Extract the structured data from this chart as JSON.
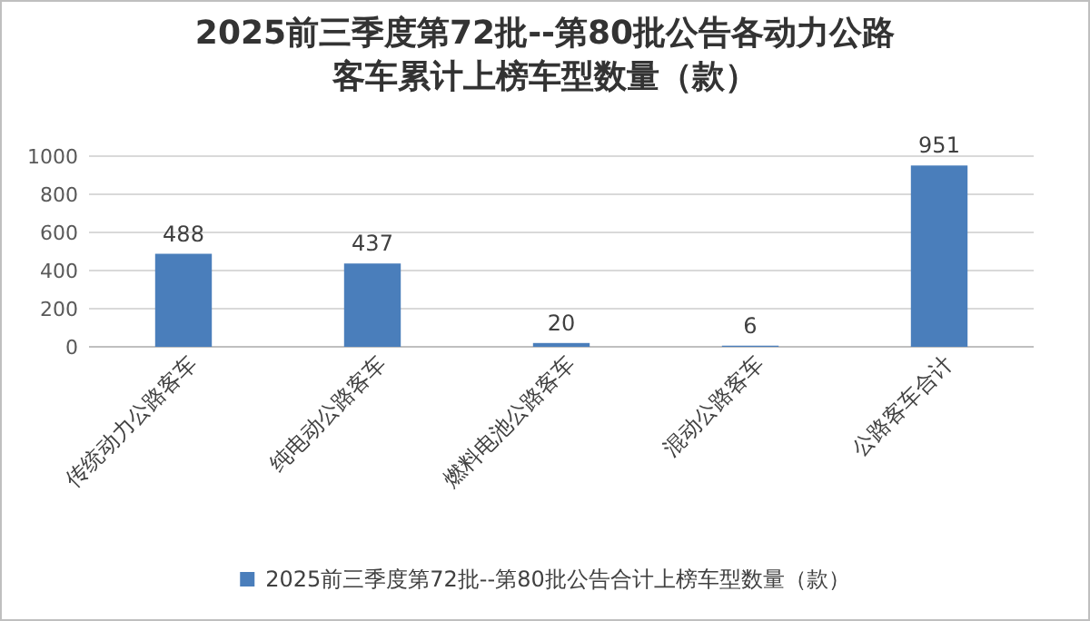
{
  "chart_data": {
    "type": "bar",
    "title": "2025前三季度第72批--第80批公告各动力公路客车累计上榜车型数量（款）",
    "categories": [
      "传统动力公路客车",
      "纯电动公路客车",
      "燃料电池公路客车",
      "混动公路客车",
      "公路客车合计"
    ],
    "series": [
      {
        "name": "2025前三季度第72批--第80批公告合计上榜车型数量（款）",
        "color": "#4a7ebb",
        "values": [
          488,
          437,
          20,
          6,
          951
        ]
      }
    ],
    "ylim": [
      0,
      1000
    ],
    "yticks": [
      0,
      200,
      400,
      600,
      800,
      1000
    ],
    "grid": "y",
    "data_labels": true,
    "legend": "bottom"
  }
}
